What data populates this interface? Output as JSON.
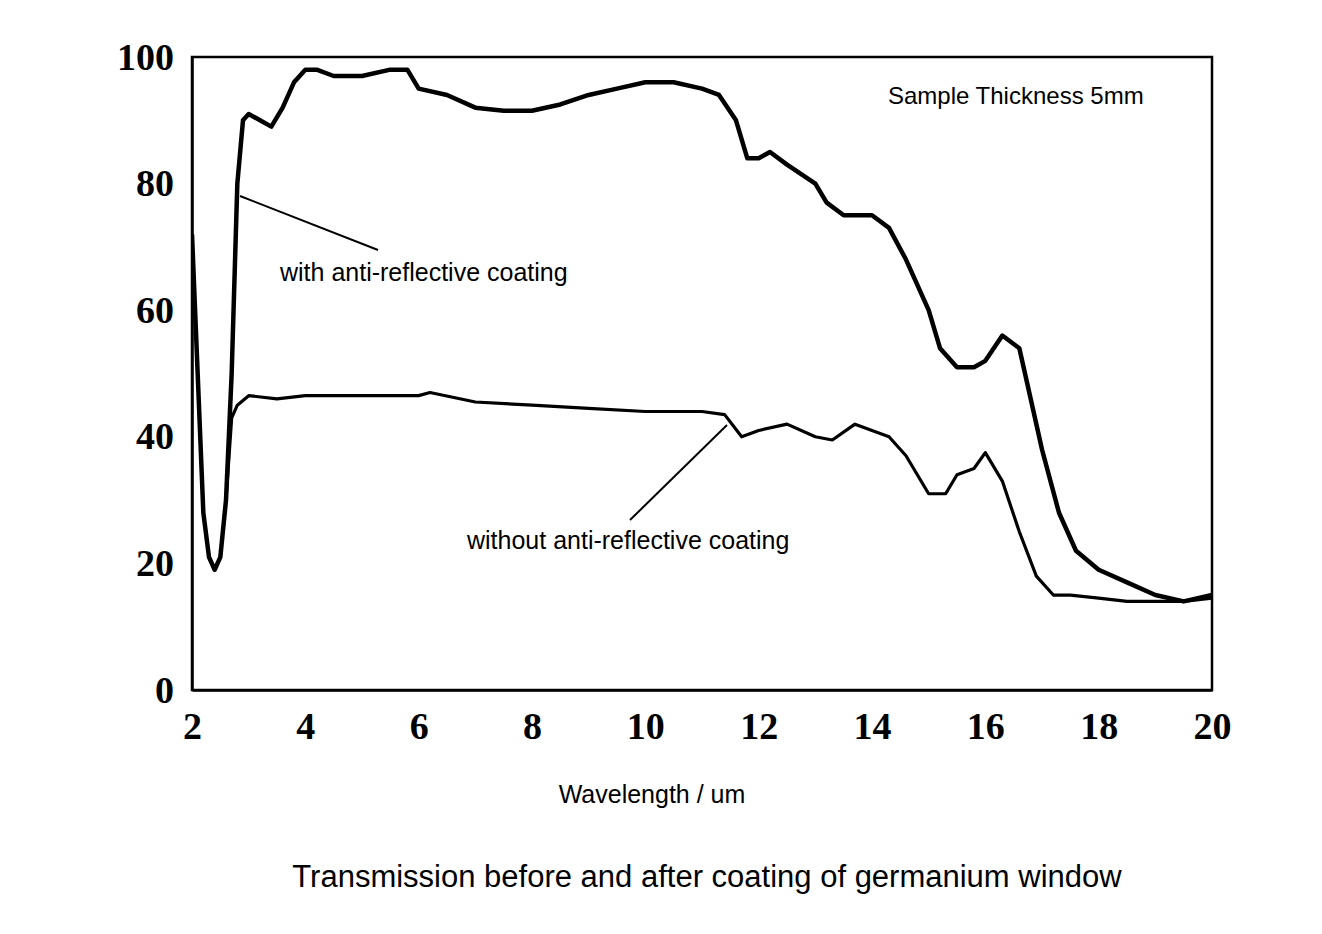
{
  "chart_data": {
    "type": "line",
    "title": "Transmission before and after coating of germanium window",
    "x_label": "Wavelength / um",
    "annotations": [
      {
        "text": "Sample Thickness 5mm"
      }
    ],
    "xlim": [
      2,
      20
    ],
    "xticks": [
      2,
      4,
      6,
      8,
      10,
      12,
      14,
      16,
      18,
      20
    ],
    "ylim": [
      0,
      100
    ],
    "yticks": [
      0,
      20,
      40,
      60,
      80,
      100
    ],
    "grid": false,
    "series": [
      {
        "name": "with anti-reflective coating",
        "color": "#000000",
        "line_style": "solid",
        "x": [
          2.0,
          2.1,
          2.2,
          2.3,
          2.4,
          2.5,
          2.6,
          2.7,
          2.8,
          2.9,
          3.0,
          3.2,
          3.4,
          3.6,
          3.8,
          4.0,
          4.2,
          4.5,
          5.0,
          5.5,
          5.8,
          6.0,
          6.5,
          7.0,
          7.5,
          8.0,
          8.5,
          9.0,
          9.5,
          10.0,
          10.5,
          11.0,
          11.3,
          11.6,
          11.8,
          12.0,
          12.2,
          12.5,
          13.0,
          13.2,
          13.5,
          14.0,
          14.3,
          14.6,
          15.0,
          15.2,
          15.5,
          15.8,
          16.0,
          16.3,
          16.6,
          16.8,
          17.0,
          17.3,
          17.6,
          18.0,
          18.5,
          19.0,
          19.5,
          20.0
        ],
        "values": [
          72,
          50,
          28,
          21,
          19,
          21,
          30,
          50,
          80,
          90,
          91,
          90,
          89,
          92,
          96,
          98,
          98,
          97,
          97,
          98,
          98,
          95,
          94,
          92,
          91.5,
          91.5,
          92.5,
          94,
          95,
          96,
          96,
          95,
          94,
          90,
          84,
          84,
          85,
          83,
          80,
          77,
          75,
          75,
          73,
          68,
          60,
          54,
          51,
          51,
          52,
          56,
          54,
          46,
          38,
          28,
          22,
          19,
          17,
          15,
          14,
          15
        ]
      },
      {
        "name": "without anti-reflective coating",
        "color": "#000000",
        "line_style": "solid",
        "x": [
          2.6,
          2.7,
          2.8,
          3.0,
          3.5,
          4.0,
          5.0,
          5.5,
          6.0,
          6.2,
          7.0,
          8.0,
          9.0,
          10.0,
          11.0,
          11.4,
          11.7,
          12.0,
          12.5,
          13.0,
          13.3,
          13.7,
          14.0,
          14.3,
          14.6,
          15.0,
          15.3,
          15.5,
          15.8,
          16.0,
          16.3,
          16.6,
          16.9,
          17.2,
          17.5,
          18.0,
          18.5,
          19.0,
          19.5,
          20.0
        ],
        "values": [
          30,
          43,
          45,
          46.5,
          46,
          46.5,
          46.5,
          46.5,
          46.5,
          47,
          45.5,
          45,
          44.5,
          44,
          44,
          43.5,
          40,
          41,
          42,
          40,
          39.5,
          42,
          41,
          40,
          37,
          31,
          31,
          34,
          35,
          37.5,
          33,
          25,
          18,
          15,
          15,
          14.5,
          14,
          14,
          14,
          14.5
        ]
      }
    ]
  }
}
